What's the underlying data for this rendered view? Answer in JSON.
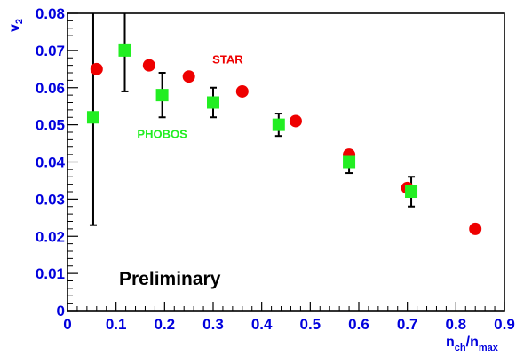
{
  "chart_data": {
    "type": "scatter",
    "xlabel": "n",
    "xlabel_sub": "ch",
    "xlabel_sep": "/n",
    "xlabel_sub2": "max",
    "ylabel": "v",
    "ylabel_sub": "2",
    "xlim": [
      0,
      0.9
    ],
    "ylim": [
      0,
      0.08
    ],
    "x_ticks": [
      0,
      0.1,
      0.2,
      0.3,
      0.4,
      0.5,
      0.6,
      0.7,
      0.8,
      0.9
    ],
    "x_tick_labels": [
      "0",
      "0.1",
      "0.2",
      "0.3",
      "0.4",
      "0.5",
      "0.6",
      "0.7",
      "0.8",
      "0.9"
    ],
    "y_ticks": [
      0,
      0.01,
      0.02,
      0.03,
      0.04,
      0.05,
      0.06,
      0.07,
      0.08
    ],
    "y_tick_labels": [
      "0",
      "0.01",
      "0.02",
      "0.03",
      "0.04",
      "0.05",
      "0.06",
      "0.07",
      "0.08"
    ],
    "annotation": "Preliminary",
    "series": [
      {
        "name": "STAR",
        "marker": "circle",
        "color": "#ee0000",
        "label_at": [
          0.33,
          0.0665
        ],
        "points": [
          {
            "x": 0.06,
            "y": 0.065
          },
          {
            "x": 0.168,
            "y": 0.066
          },
          {
            "x": 0.25,
            "y": 0.063
          },
          {
            "x": 0.36,
            "y": 0.059
          },
          {
            "x": 0.47,
            "y": 0.051
          },
          {
            "x": 0.58,
            "y": 0.042
          },
          {
            "x": 0.7,
            "y": 0.033
          },
          {
            "x": 0.84,
            "y": 0.022
          }
        ]
      },
      {
        "name": "PHOBOS",
        "marker": "square",
        "color": "#22ee22",
        "label_at": [
          0.195,
          0.0465
        ],
        "points": [
          {
            "x": 0.053,
            "y": 0.052,
            "err_hi": 0.03,
            "err_lo": 0.029
          },
          {
            "x": 0.118,
            "y": 0.07,
            "err_hi": 0.012,
            "err_lo": 0.011
          },
          {
            "x": 0.195,
            "y": 0.058,
            "err_hi": 0.006,
            "err_lo": 0.006
          },
          {
            "x": 0.3,
            "y": 0.056,
            "err_hi": 0.004,
            "err_lo": 0.004
          },
          {
            "x": 0.435,
            "y": 0.05,
            "err_hi": 0.003,
            "err_lo": 0.003
          },
          {
            "x": 0.58,
            "y": 0.04,
            "err_hi": 0.002,
            "err_lo": 0.003
          },
          {
            "x": 0.708,
            "y": 0.032,
            "err_hi": 0.004,
            "err_lo": 0.004
          }
        ]
      }
    ]
  }
}
